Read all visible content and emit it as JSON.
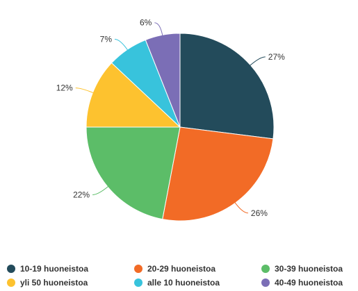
{
  "chart_data": {
    "type": "pie",
    "title": "",
    "slices": [
      {
        "label": "10-19 huoneistoa",
        "value": 27,
        "value_label": "27%",
        "color": "#234b5b"
      },
      {
        "label": "20-29 huoneistoa",
        "value": 26,
        "value_label": "26%",
        "color": "#f26b26"
      },
      {
        "label": "30-39 huoneistoa",
        "value": 22,
        "value_label": "22%",
        "color": "#5cbd68"
      },
      {
        "label": "yli 50 huoneistoa",
        "value": 12,
        "value_label": "12%",
        "color": "#fdc22f"
      },
      {
        "label": "alle 10 huoneistoa",
        "value": 7,
        "value_label": "7%",
        "color": "#38c3dc"
      },
      {
        "label": "40-49 huoneistoa",
        "value": 6,
        "value_label": "6%",
        "color": "#7b6eb6"
      }
    ],
    "legend_position": "bottom",
    "legend_order": [
      "10-19 huoneistoa",
      "20-29 huoneistoa",
      "30-39 huoneistoa",
      "yli 50 huoneistoa",
      "alle 10 huoneistoa",
      "40-49 huoneistoa"
    ]
  }
}
